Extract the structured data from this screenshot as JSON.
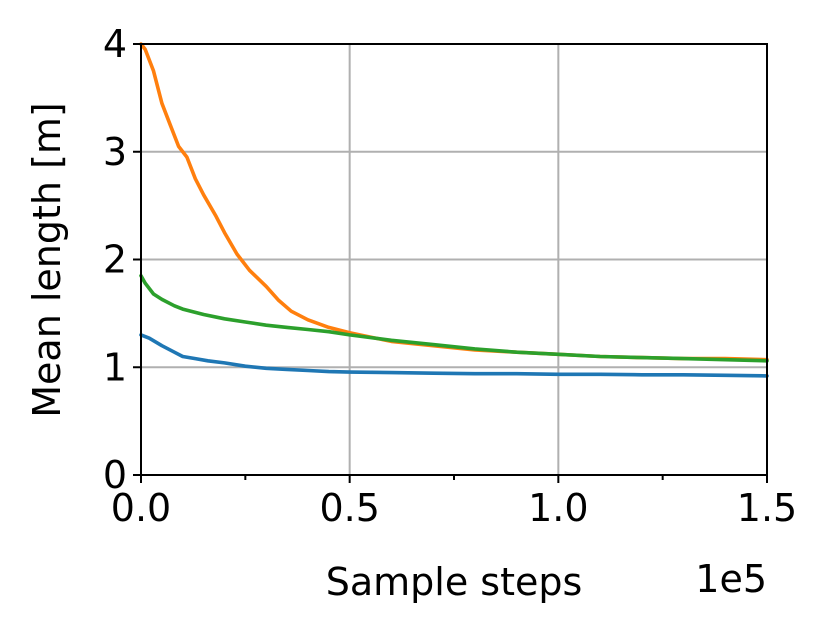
{
  "chart_data": {
    "type": "line",
    "title": "",
    "xlabel": "Sample steps",
    "ylabel": "Mean length [m]",
    "x_multiplier_label": "1e5",
    "xlim": [
      0,
      1.5
    ],
    "ylim": [
      0,
      4
    ],
    "x_ticks": [
      0.0,
      0.5,
      1.0,
      1.5
    ],
    "x_tick_labels": [
      "0.0",
      "0.5",
      "1.0",
      "1.5"
    ],
    "x_minor_ticks": [
      0.25,
      0.75,
      1.25
    ],
    "y_ticks": [
      0,
      1,
      2,
      3,
      4
    ],
    "y_tick_labels": [
      "0",
      "1",
      "2",
      "3",
      "4"
    ],
    "grid": true,
    "legend": "none",
    "series": [
      {
        "color": "#1f77b4",
        "x": [
          0.0,
          0.02,
          0.05,
          0.08,
          0.1,
          0.13,
          0.16,
          0.2,
          0.25,
          0.3,
          0.35,
          0.4,
          0.45,
          0.5,
          0.6,
          0.7,
          0.8,
          0.9,
          1.0,
          1.1,
          1.2,
          1.3,
          1.4,
          1.5
        ],
        "y": [
          1.3,
          1.27,
          1.2,
          1.14,
          1.1,
          1.08,
          1.06,
          1.04,
          1.01,
          0.99,
          0.98,
          0.97,
          0.96,
          0.955,
          0.95,
          0.945,
          0.94,
          0.94,
          0.935,
          0.935,
          0.93,
          0.93,
          0.925,
          0.92
        ]
      },
      {
        "color": "#ff7f0e",
        "x": [
          0.0,
          0.01,
          0.03,
          0.05,
          0.07,
          0.09,
          0.11,
          0.13,
          0.15,
          0.18,
          0.2,
          0.23,
          0.26,
          0.3,
          0.33,
          0.36,
          0.4,
          0.45,
          0.5,
          0.55,
          0.6,
          0.7,
          0.8,
          0.9,
          1.0,
          1.1,
          1.2,
          1.3,
          1.4,
          1.5
        ],
        "y": [
          4.0,
          3.95,
          3.75,
          3.45,
          3.25,
          3.05,
          2.95,
          2.75,
          2.6,
          2.4,
          2.25,
          2.05,
          1.9,
          1.75,
          1.62,
          1.52,
          1.44,
          1.37,
          1.32,
          1.28,
          1.24,
          1.2,
          1.16,
          1.14,
          1.12,
          1.1,
          1.09,
          1.08,
          1.08,
          1.07
        ]
      },
      {
        "color": "#2ca02c",
        "x": [
          0.0,
          0.01,
          0.03,
          0.05,
          0.08,
          0.1,
          0.15,
          0.2,
          0.25,
          0.3,
          0.35,
          0.4,
          0.45,
          0.5,
          0.6,
          0.7,
          0.8,
          0.9,
          1.0,
          1.1,
          1.2,
          1.3,
          1.4,
          1.5
        ],
        "y": [
          1.85,
          1.78,
          1.68,
          1.63,
          1.57,
          1.54,
          1.49,
          1.45,
          1.42,
          1.39,
          1.37,
          1.35,
          1.33,
          1.3,
          1.25,
          1.21,
          1.17,
          1.14,
          1.12,
          1.1,
          1.09,
          1.08,
          1.07,
          1.06
        ]
      }
    ]
  }
}
